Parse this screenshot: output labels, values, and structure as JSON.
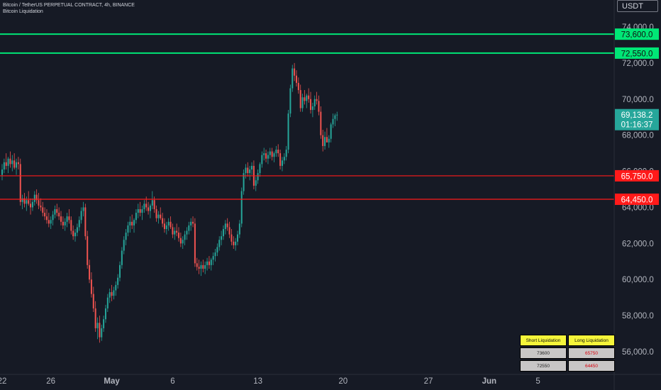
{
  "header": {
    "symbol_line": "Bitcoin / TetherUS PERPETUAL CONTRACT, 4h, BINANCE",
    "indicator": "Bitcoin Liquidation"
  },
  "currency": "USDT",
  "colors": {
    "background": "#161a25",
    "up": "#26a69a",
    "down": "#ef5350",
    "short_line": "#00e676",
    "long_line": "#ff1a1a"
  },
  "liquidation_table": {
    "short_header": "Short Liquidation",
    "long_header": "Long Liquidation",
    "rows": [
      {
        "short": "73600",
        "long": "65750"
      },
      {
        "short": "72550",
        "long": "64450"
      }
    ]
  },
  "chart_data": {
    "type": "candlestick",
    "y_ticks": [
      "74,000.0",
      "72,000.0",
      "70,000.0",
      "68,000.0",
      "66,000.0",
      "64,000.0",
      "62,000.0",
      "60,000.0",
      "58,000.0",
      "56,000.0"
    ],
    "y_tick_values": [
      74000,
      72000,
      70000,
      68000,
      66000,
      64000,
      62000,
      60000,
      58000,
      56000
    ],
    "ylim": [
      55500,
      75600
    ],
    "x_ticks": [
      {
        "label": "22",
        "bar": 0
      },
      {
        "label": "26",
        "bar": 24
      },
      {
        "label": "May",
        "bar": 54
      },
      {
        "label": "6",
        "bar": 84
      },
      {
        "label": "13",
        "bar": 126
      },
      {
        "label": "20",
        "bar": 168
      },
      {
        "label": "27",
        "bar": 210
      },
      {
        "label": "Jun",
        "bar": 240
      },
      {
        "label": "5",
        "bar": 264
      }
    ],
    "horizontal_levels": [
      {
        "value": 73600,
        "label": "73,600.0",
        "kind": "short"
      },
      {
        "value": 72550,
        "label": "72,550.0",
        "kind": "short"
      },
      {
        "value": 65750,
        "label": "65,750.0",
        "kind": "long"
      },
      {
        "value": 64450,
        "label": "64,450.0",
        "kind": "long"
      }
    ],
    "last_price": {
      "label": "69,138.2",
      "countdown": "01:16:37",
      "value": 69138.2
    },
    "candles": [
      [
        65800,
        66400,
        65500,
        66100
      ],
      [
        66100,
        66700,
        65900,
        66500
      ],
      [
        66500,
        67000,
        66100,
        66300
      ],
      [
        66300,
        66800,
        65900,
        66700
      ],
      [
        66700,
        67100,
        66200,
        66400
      ],
      [
        66400,
        66900,
        66000,
        66600
      ],
      [
        66600,
        67000,
        66100,
        66200
      ],
      [
        66200,
        66700,
        65800,
        66500
      ],
      [
        66500,
        66800,
        66100,
        66400
      ],
      [
        66400,
        66700,
        64100,
        64300
      ],
      [
        64300,
        64700,
        63900,
        64500
      ],
      [
        64500,
        64800,
        64000,
        64200
      ],
      [
        64200,
        64600,
        63800,
        64400
      ],
      [
        64400,
        64900,
        64100,
        64200
      ],
      [
        64200,
        64500,
        63600,
        64000
      ],
      [
        64000,
        64500,
        63800,
        64300
      ],
      [
        64300,
        64900,
        64100,
        64700
      ],
      [
        64700,
        65000,
        64200,
        64400
      ],
      [
        64400,
        64800,
        63900,
        64100
      ],
      [
        64100,
        64500,
        63800,
        64000
      ],
      [
        64000,
        64300,
        63500,
        63700
      ],
      [
        63700,
        64000,
        63300,
        63500
      ],
      [
        63500,
        63900,
        63100,
        63300
      ],
      [
        63300,
        63700,
        62900,
        63100
      ],
      [
        63100,
        63500,
        62800,
        63300
      ],
      [
        63300,
        63800,
        63000,
        63600
      ],
      [
        63600,
        64100,
        63400,
        63900
      ],
      [
        63900,
        64200,
        63500,
        63700
      ],
      [
        63700,
        64000,
        63300,
        63500
      ],
      [
        63500,
        63800,
        63000,
        63200
      ],
      [
        63200,
        63500,
        62800,
        63000
      ],
      [
        63000,
        63400,
        62700,
        63200
      ],
      [
        63200,
        63700,
        62900,
        63500
      ],
      [
        63500,
        63900,
        63100,
        63300
      ],
      [
        63300,
        63500,
        62500,
        62700
      ],
      [
        62700,
        63000,
        62200,
        62400
      ],
      [
        62400,
        62800,
        62100,
        62600
      ],
      [
        62600,
        63100,
        62400,
        62900
      ],
      [
        62900,
        63500,
        62700,
        63300
      ],
      [
        63300,
        64000,
        63100,
        63800
      ],
      [
        63800,
        64300,
        63500,
        64000
      ],
      [
        64000,
        64200,
        62200,
        62400
      ],
      [
        62400,
        62700,
        60600,
        60800
      ],
      [
        60800,
        61100,
        59800,
        60000
      ],
      [
        60000,
        60400,
        59000,
        59200
      ],
      [
        59200,
        59600,
        58200,
        58400
      ],
      [
        58400,
        58800,
        57100,
        57300
      ],
      [
        57300,
        57900,
        56700,
        57600
      ],
      [
        57600,
        58000,
        56500,
        56800
      ],
      [
        56800,
        57500,
        56600,
        57300
      ],
      [
        57300,
        58000,
        57100,
        57800
      ],
      [
        57800,
        58600,
        57600,
        58400
      ],
      [
        58400,
        59200,
        58200,
        59000
      ],
      [
        59000,
        59500,
        58700,
        59300
      ],
      [
        59300,
        59700,
        58800,
        59100
      ],
      [
        59100,
        59600,
        58900,
        59400
      ],
      [
        59400,
        59900,
        59100,
        59700
      ],
      [
        59700,
        60300,
        59500,
        60100
      ],
      [
        60100,
        61000,
        59900,
        60800
      ],
      [
        60800,
        61800,
        60600,
        61600
      ],
      [
        61600,
        62400,
        61400,
        62200
      ],
      [
        62200,
        62800,
        61900,
        62600
      ],
      [
        62600,
        63200,
        62400,
        63000
      ],
      [
        63000,
        63500,
        62600,
        63200
      ],
      [
        63200,
        63600,
        62800,
        63000
      ],
      [
        63000,
        63400,
        62600,
        63300
      ],
      [
        63300,
        63900,
        63100,
        63700
      ],
      [
        63700,
        64200,
        63400,
        63900
      ],
      [
        63900,
        64300,
        63500,
        63700
      ],
      [
        63700,
        64100,
        63300,
        63900
      ],
      [
        63900,
        64400,
        63700,
        64200
      ],
      [
        64200,
        64600,
        63800,
        64000
      ],
      [
        64000,
        64300,
        63600,
        63800
      ],
      [
        63800,
        64200,
        63400,
        64100
      ],
      [
        64100,
        64900,
        63900,
        64400
      ],
      [
        64400,
        64600,
        63700,
        63900
      ],
      [
        63900,
        64100,
        63200,
        63400
      ],
      [
        63400,
        63800,
        63100,
        63600
      ],
      [
        63600,
        64000,
        63300,
        63400
      ],
      [
        63400,
        63700,
        62900,
        63100
      ],
      [
        63100,
        63400,
        62600,
        62800
      ],
      [
        62800,
        63200,
        62500,
        63000
      ],
      [
        63000,
        63400,
        62700,
        63200
      ],
      [
        63200,
        63500,
        62800,
        62900
      ],
      [
        62900,
        63100,
        62300,
        62500
      ],
      [
        62500,
        62900,
        62200,
        62700
      ],
      [
        62700,
        63100,
        62400,
        62600
      ],
      [
        62600,
        62900,
        62100,
        62300
      ],
      [
        62300,
        62600,
        61800,
        62000
      ],
      [
        62000,
        62400,
        61700,
        62200
      ],
      [
        62200,
        62700,
        61900,
        62500
      ],
      [
        62500,
        62900,
        62200,
        62700
      ],
      [
        62700,
        63200,
        62500,
        63000
      ],
      [
        63000,
        63400,
        62700,
        63200
      ],
      [
        63200,
        63500,
        62900,
        63100
      ],
      [
        63100,
        63400,
        60700,
        60900
      ],
      [
        60900,
        61200,
        60500,
        60700
      ],
      [
        60700,
        61100,
        60300,
        60600
      ],
      [
        60600,
        61000,
        60200,
        60800
      ],
      [
        60800,
        61100,
        60400,
        60600
      ],
      [
        60600,
        61000,
        60300,
        60800
      ],
      [
        60800,
        61200,
        60500,
        61000
      ],
      [
        61000,
        61300,
        60600,
        60800
      ],
      [
        60800,
        61200,
        60500,
        61100
      ],
      [
        61100,
        61500,
        60800,
        61300
      ],
      [
        61300,
        61700,
        61000,
        61500
      ],
      [
        61500,
        62000,
        61300,
        61800
      ],
      [
        61800,
        62400,
        61600,
        62200
      ],
      [
        62200,
        62700,
        61900,
        62400
      ],
      [
        62400,
        63000,
        62200,
        62800
      ],
      [
        62800,
        63300,
        62500,
        63100
      ],
      [
        63100,
        63400,
        62700,
        62900
      ],
      [
        62900,
        63200,
        62300,
        62500
      ],
      [
        62500,
        62800,
        61900,
        62100
      ],
      [
        62100,
        62400,
        61700,
        61900
      ],
      [
        61900,
        62300,
        61600,
        62100
      ],
      [
        62100,
        62700,
        61900,
        62500
      ],
      [
        62500,
        63300,
        62300,
        63100
      ],
      [
        63100,
        65100,
        62900,
        64900
      ],
      [
        64900,
        66100,
        64700,
        65900
      ],
      [
        65900,
        66400,
        65600,
        66200
      ],
      [
        66200,
        66500,
        65700,
        65900
      ],
      [
        65900,
        66300,
        65500,
        66100
      ],
      [
        66100,
        66500,
        65800,
        66300
      ],
      [
        66300,
        66600,
        65000,
        65200
      ],
      [
        65200,
        65700,
        64900,
        65500
      ],
      [
        65500,
        66100,
        65300,
        65900
      ],
      [
        65900,
        66500,
        65700,
        66400
      ],
      [
        66400,
        67100,
        66200,
        66900
      ],
      [
        66900,
        67300,
        66600,
        67000
      ],
      [
        67000,
        67200,
        66500,
        66700
      ],
      [
        66700,
        67100,
        66400,
        66900
      ],
      [
        66900,
        67300,
        66700,
        67100
      ],
      [
        67100,
        67300,
        66600,
        66800
      ],
      [
        66800,
        67100,
        66500,
        67000
      ],
      [
        67000,
        67400,
        66800,
        67200
      ],
      [
        67200,
        67500,
        66800,
        67000
      ],
      [
        67000,
        67200,
        66100,
        66300
      ],
      [
        66300,
        66800,
        66000,
        66600
      ],
      [
        66600,
        67000,
        66400,
        66800
      ],
      [
        66800,
        67400,
        66600,
        67200
      ],
      [
        67200,
        69400,
        67000,
        69200
      ],
      [
        69200,
        70800,
        69000,
        70600
      ],
      [
        70600,
        71900,
        70400,
        71700
      ],
      [
        71700,
        72000,
        71000,
        71300
      ],
      [
        71300,
        71600,
        70700,
        70900
      ],
      [
        70900,
        71200,
        70300,
        70500
      ],
      [
        70500,
        70800,
        69300,
        69500
      ],
      [
        69500,
        70300,
        69300,
        70100
      ],
      [
        70100,
        70500,
        69700,
        69900
      ],
      [
        69900,
        70300,
        69500,
        70200
      ],
      [
        70200,
        70600,
        69800,
        70000
      ],
      [
        70000,
        70400,
        69200,
        69400
      ],
      [
        69400,
        69800,
        69000,
        69600
      ],
      [
        69600,
        70200,
        69400,
        70000
      ],
      [
        70000,
        70400,
        69700,
        69900
      ],
      [
        69900,
        70200,
        69100,
        69300
      ],
      [
        69300,
        69600,
        67800,
        68000
      ],
      [
        68000,
        68300,
        67100,
        67400
      ],
      [
        67400,
        68200,
        67200,
        67900
      ],
      [
        67900,
        68400,
        67600,
        67600
      ],
      [
        67600,
        68000,
        67300,
        67800
      ],
      [
        67800,
        68700,
        67600,
        68600
      ],
      [
        68600,
        69200,
        68400,
        68900
      ],
      [
        68900,
        69200,
        68500,
        69100
      ],
      [
        69100,
        69300,
        68800,
        69138
      ]
    ]
  }
}
